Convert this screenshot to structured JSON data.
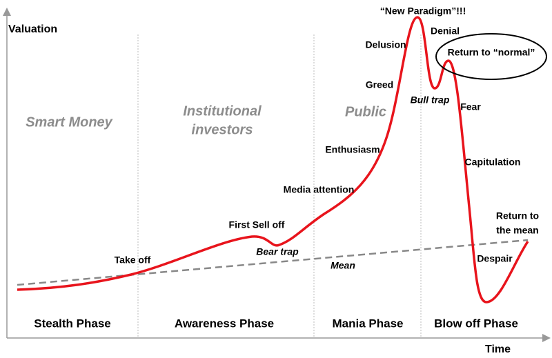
{
  "axes": {
    "y": "Valuation",
    "x": "Time"
  },
  "groups": [
    {
      "lines": [
        "Smart Money"
      ]
    },
    {
      "lines": [
        "Institutional",
        "investors"
      ]
    },
    {
      "lines": [
        "Public"
      ]
    }
  ],
  "phases": [
    "Stealth Phase",
    "Awareness Phase",
    "Mania Phase",
    "Blow off Phase"
  ],
  "annotations": {
    "new_paradigm": "“New Paradigm”!!!",
    "denial": "Denial",
    "delusion": "Delusion",
    "return_to_normal": "Return to “normal”",
    "greed": "Greed",
    "bull_trap": "Bull trap",
    "fear": "Fear",
    "enthusiasm": "Enthusiasm",
    "capitulation": "Capitulation",
    "media_attention": "Media attention",
    "first_sell_off": "First Sell off",
    "bear_trap": "Bear trap",
    "take_off": "Take off",
    "mean": "Mean",
    "return_to_mean": [
      "Return to",
      "the mean"
    ],
    "despair": "Despair"
  }
}
